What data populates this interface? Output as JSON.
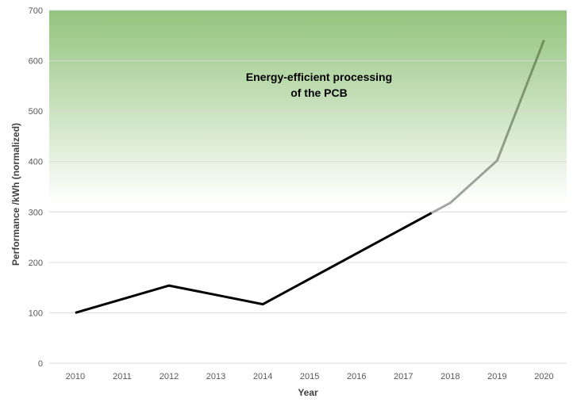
{
  "chart_data": {
    "type": "line",
    "title": "",
    "xlabel": "Year",
    "ylabel": "Performance /kWh (normalized)",
    "categories": [
      "2010",
      "2011",
      "2012",
      "2013",
      "2014",
      "2015",
      "2016",
      "2017",
      "2018",
      "2019",
      "2020"
    ],
    "series": [
      {
        "name": "Performance",
        "x": [
          2010,
          2012,
          2014,
          2017.6,
          2018,
          2019,
          2020
        ],
        "values": [
          100,
          154,
          117,
          298,
          318,
          402,
          641
        ]
      }
    ],
    "ylim": [
      0,
      700
    ],
    "yticks": [
      0,
      100,
      200,
      300,
      400,
      500,
      600,
      700
    ],
    "grid": true,
    "legend": "none",
    "annotations": [
      {
        "lines": [
          "Energy-efficient processing",
          "of the PCB"
        ],
        "x": 2015.2,
        "y": 560
      }
    ],
    "colors": {
      "gradient_top": "#93c47d",
      "gradient_bottom": "#ffffff",
      "line_past": "#000000",
      "line_forecast_light": "#a6a6a6",
      "line_forecast_dark": "#6e8f5a",
      "gridline": "#d9d9d9",
      "tick_text": "#595959"
    }
  }
}
